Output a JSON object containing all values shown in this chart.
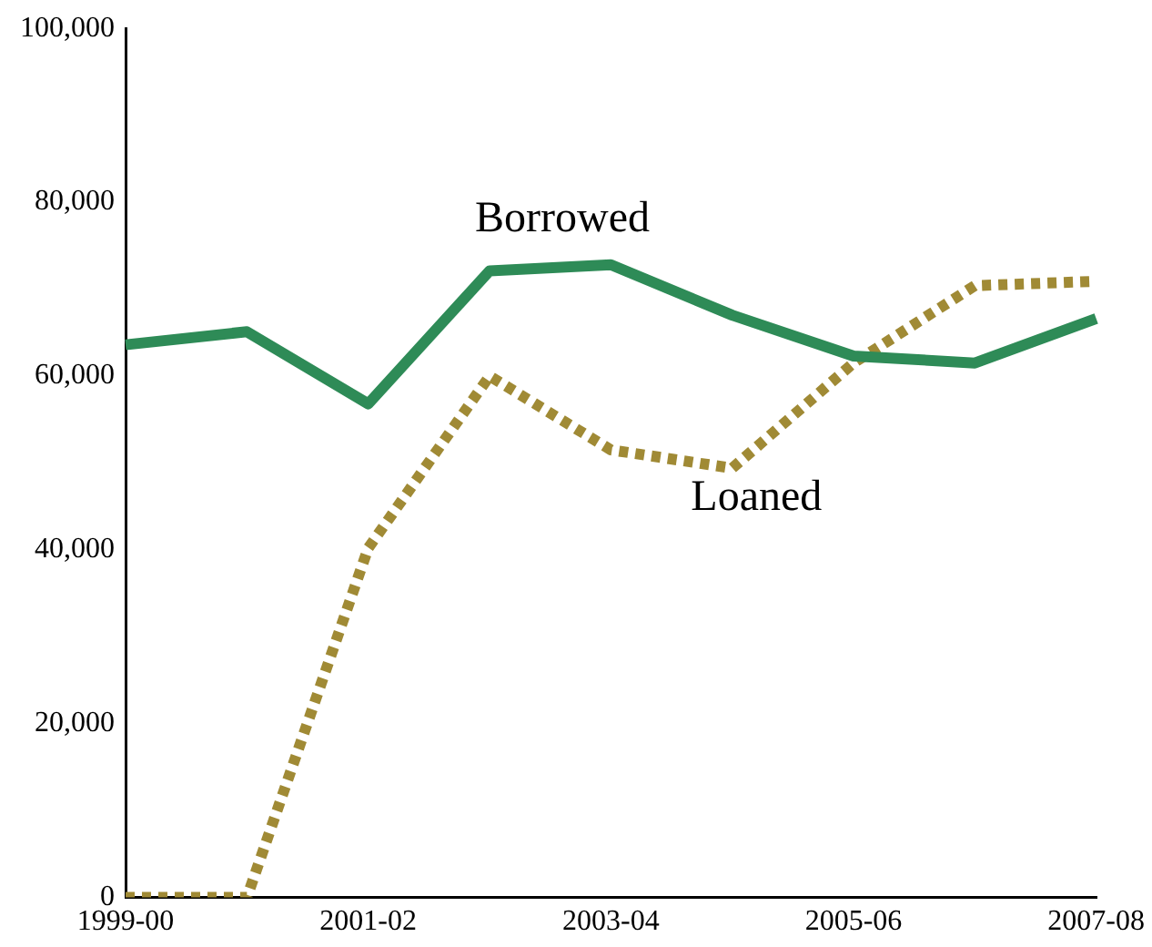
{
  "chart_data": {
    "type": "line",
    "categories": [
      "1999-00",
      null,
      "2001-02",
      null,
      "2003-04",
      null,
      "2005-06",
      null,
      "2007-08"
    ],
    "series": [
      {
        "name": "Borrowed",
        "color": "#2e8b57",
        "line_style": "solid",
        "values": [
          63600,
          65100,
          56800,
          72100,
          72800,
          67000,
          62300,
          61500,
          66600
        ]
      },
      {
        "name": "Loaned",
        "color": "#a08a35",
        "line_style": "dotted",
        "values": [
          0,
          0,
          40200,
          60000,
          51500,
          49400,
          61500,
          70400,
          70900
        ]
      }
    ],
    "ylim": [
      0,
      100000
    ],
    "yticks": [
      {
        "value": 0,
        "label": "0"
      },
      {
        "value": 20000,
        "label": "20,000"
      },
      {
        "value": 40000,
        "label": "40,000"
      },
      {
        "value": 60000,
        "label": "60,000"
      },
      {
        "value": 80000,
        "label": "80,000"
      },
      {
        "value": 100000,
        "label": "100,000"
      }
    ],
    "grid": false,
    "legend": false,
    "marker": "none"
  }
}
